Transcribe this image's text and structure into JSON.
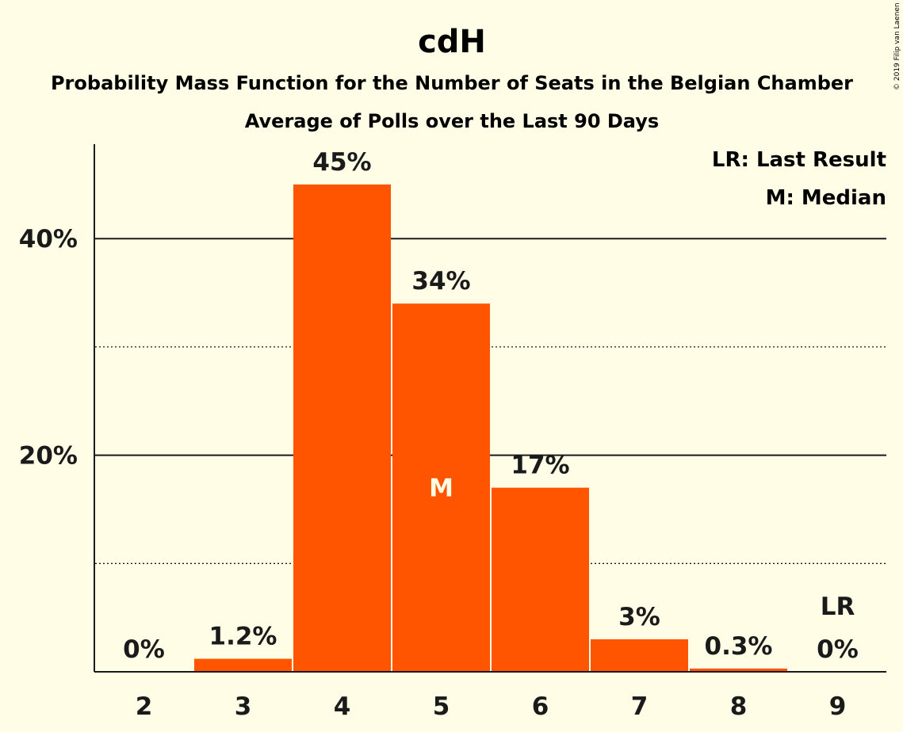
{
  "title": "cdH",
  "subtitle_1": "Probability Mass Function for the Number of Seats in the Belgian Chamber",
  "subtitle_2": "Average of Polls over the Last 90 Days",
  "copyright": "© 2019 Filip van Laenen",
  "legend": {
    "last_result": "LR: Last Result",
    "median": "M: Median"
  },
  "colors": {
    "background": "#FFFDE6",
    "bar": "#FF5500",
    "text": "#1a1a1a",
    "median_marker": "#FFFDE6"
  },
  "chart_data": {
    "type": "bar",
    "categories": [
      "2",
      "3",
      "4",
      "5",
      "6",
      "7",
      "8",
      "9"
    ],
    "values": [
      0,
      1.2,
      45,
      34,
      17,
      3,
      0.3,
      0
    ],
    "data_labels": [
      "0%",
      "1.2%",
      "45%",
      "34%",
      "17%",
      "3%",
      "0.3%",
      "0%"
    ],
    "ylim": [
      0,
      48
    ],
    "yticks": [
      {
        "value": 20,
        "label": "20%"
      },
      {
        "value": 40,
        "label": "40%"
      }
    ],
    "minor_gridlines": [
      10,
      30
    ],
    "median_category": "5",
    "median_label": "M",
    "last_result_category": "9",
    "last_result_label": "LR",
    "legend_position": "top-right",
    "grid": true
  }
}
